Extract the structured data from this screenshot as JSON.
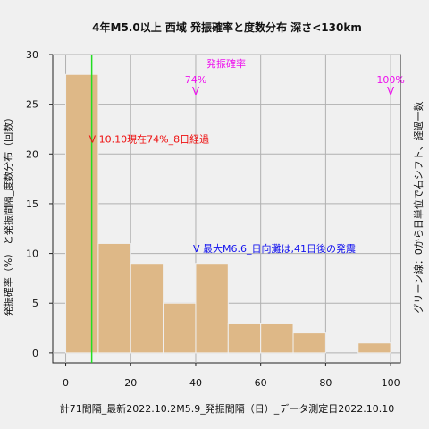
{
  "chart_data": {
    "type": "bar",
    "title": "4年M5.0以上 西域 発振確率と度数分布 深さ<130km",
    "xlabel": "計71間隔_最新2022.10.2M5.9_発振間隔（日）_データ測定日2022.10.10",
    "ylabel": "発振確率（%） と発振間隔_度数分布（回数）",
    "right_label": "グリーン線：0から日単位で右シフト、経過一数",
    "xlim": [
      -4,
      103
    ],
    "ylim": [
      -1,
      30
    ],
    "x_ticks": [
      0,
      20,
      40,
      60,
      80,
      100
    ],
    "y_ticks": [
      0,
      5,
      10,
      15,
      20,
      25,
      30
    ],
    "grid": true,
    "bins": [
      {
        "x0": 0,
        "x1": 10,
        "count": 28
      },
      {
        "x0": 10,
        "x1": 20,
        "count": 11
      },
      {
        "x0": 20,
        "x1": 30,
        "count": 9
      },
      {
        "x0": 30,
        "x1": 40,
        "count": 5
      },
      {
        "x0": 40,
        "x1": 50,
        "count": 9
      },
      {
        "x0": 50,
        "x1": 60,
        "count": 3
      },
      {
        "x0": 60,
        "x1": 70,
        "count": 3
      },
      {
        "x0": 70,
        "x1": 80,
        "count": 2
      },
      {
        "x0": 80,
        "x1": 90,
        "count": 0
      },
      {
        "x0": 90,
        "x1": 100,
        "count": 1
      }
    ],
    "green_line_x": 8,
    "prob_title": "発振確率",
    "prob_markers": [
      {
        "x": 40,
        "label": "74%"
      },
      {
        "x": 100,
        "label": "100%"
      }
    ],
    "annotations": [
      {
        "x": 8,
        "y": 21.5,
        "text": "V 10.10現在74%_8日経過",
        "color": "#ee1111"
      },
      {
        "x": 40,
        "y": 10.5,
        "text": "V 最大M6.6_日向灘は,41日後の発震",
        "color": "#1111ee"
      }
    ],
    "colors": {
      "bar_fill": "#deb887",
      "bar_edge": "#f0f0f0",
      "green": "#22dd22",
      "magenta": "#ee11ee",
      "grid": "#b0b0b0"
    }
  }
}
